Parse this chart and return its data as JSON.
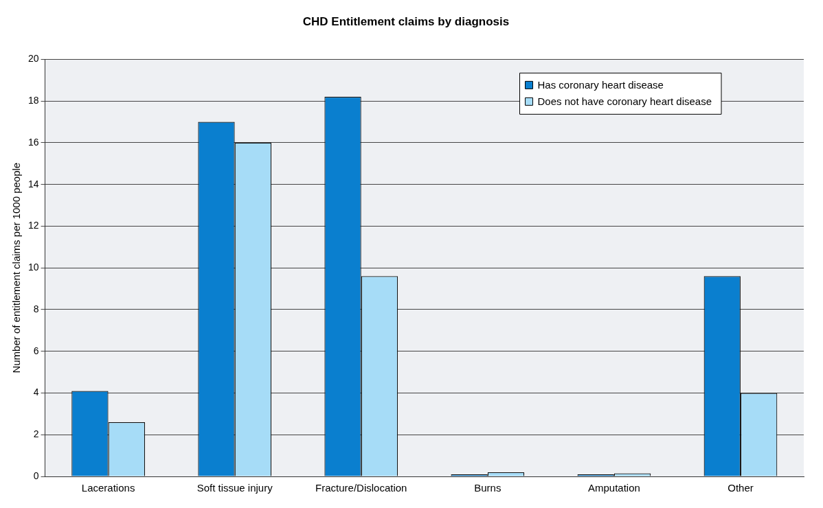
{
  "chart_data": {
    "type": "bar",
    "title": "CHD Entitlement claims by diagnosis",
    "ylabel": "Number of entitlement claims per 1000 people",
    "categories": [
      "Lacerations",
      "Soft tissue injury",
      "Fracture/Dislocation",
      "Burns",
      "Amputation",
      "Other"
    ],
    "series": [
      {
        "name": "Has coronary heart disease",
        "color": "#0a7fcf",
        "values": [
          4.1,
          17,
          18.2,
          0.1,
          0.1,
          9.6
        ]
      },
      {
        "name": "Does not have coronary heart disease",
        "color": "#a6dcf7",
        "values": [
          2.6,
          16,
          9.6,
          0.2,
          0.15,
          4.0
        ]
      }
    ],
    "ylim": [
      0,
      20
    ],
    "yticks": [
      0,
      2,
      4,
      6,
      8,
      10,
      12,
      14,
      16,
      18,
      20
    ],
    "grid": "y",
    "legend": "top right"
  }
}
